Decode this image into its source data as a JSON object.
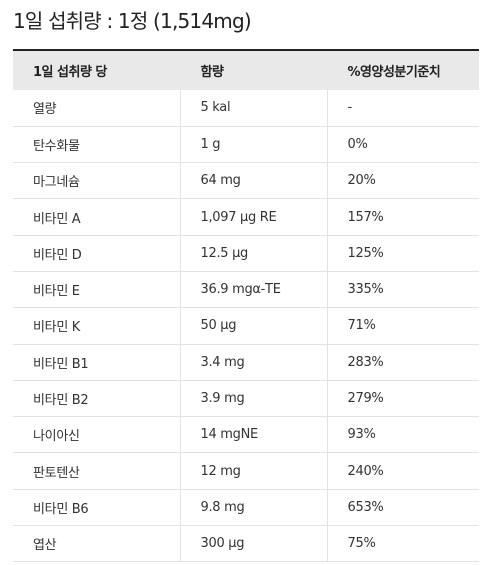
{
  "title": "1일 섭취량 : 1정 (1,514mg)",
  "table": {
    "headers": [
      "1일 섭취량 당",
      "함량",
      "%영양성분기준치"
    ],
    "rows": [
      {
        "name": "열량",
        "amount": "5 kal",
        "percent": "-"
      },
      {
        "name": "탄수화물",
        "amount": "1 g",
        "percent": "0%"
      },
      {
        "name": "마그네슘",
        "amount": "64 mg",
        "percent": "20%"
      },
      {
        "name": "비타민 A",
        "amount": "1,097 μg RE",
        "percent": "157%"
      },
      {
        "name": "비타민 D",
        "amount": "12.5 μg",
        "percent": "125%"
      },
      {
        "name": "비타민 E",
        "amount": "36.9 mgα-TE",
        "percent": "335%"
      },
      {
        "name": "비타민 K",
        "amount": "50 μg",
        "percent": "71%"
      },
      {
        "name": "비타민 B1",
        "amount": "3.4 mg",
        "percent": "283%"
      },
      {
        "name": "비타민 B2",
        "amount": "3.9 mg",
        "percent": "279%"
      },
      {
        "name": "나이아신",
        "amount": "14 mgNE",
        "percent": "93%"
      },
      {
        "name": "판토텐산",
        "amount": "12 mg",
        "percent": "240%"
      },
      {
        "name": "비타민 B6",
        "amount": "9.8 mg",
        "percent": "653%"
      },
      {
        "name": "엽산",
        "amount": "300 μg",
        "percent": "75%"
      }
    ]
  }
}
